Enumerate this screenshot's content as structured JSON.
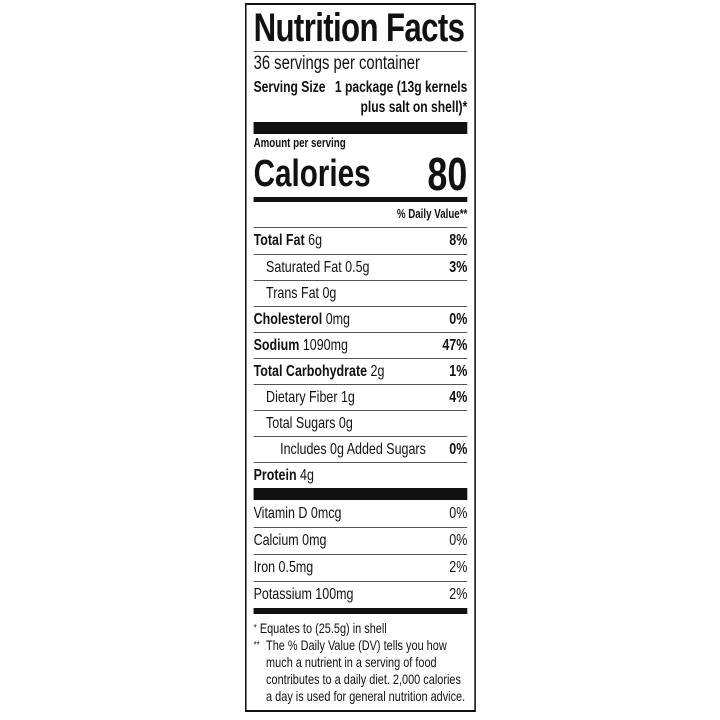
{
  "title": "Nutrition Facts",
  "servings_per_container": "36 servings per container",
  "serving_size": {
    "label": "Serving Size",
    "value_line1": "1 package (13g kernels",
    "value_line2": "plus salt on shell)*"
  },
  "amount_per_serving": "Amount per serving",
  "calories": {
    "label": "Calories",
    "value": "80"
  },
  "daily_value_header": "% Daily Value**",
  "nutrients": [
    {
      "name": "Total Fat",
      "amount": "6g",
      "dv": "8%",
      "bold": true,
      "indent": 0
    },
    {
      "name": "Saturated Fat",
      "amount": "0.5g",
      "dv": "3%",
      "bold": false,
      "indent": 1
    },
    {
      "name": "Trans Fat",
      "amount": "0g",
      "dv": "",
      "bold": false,
      "indent": 1
    },
    {
      "name": "Cholesterol",
      "amount": "0mg",
      "dv": "0%",
      "bold": true,
      "indent": 0
    },
    {
      "name": "Sodium",
      "amount": "1090mg",
      "dv": "47%",
      "bold": true,
      "indent": 0
    },
    {
      "name": "Total Carbohydrate",
      "amount": "2g",
      "dv": "1%",
      "bold": true,
      "indent": 0
    },
    {
      "name": "Dietary Fiber",
      "amount": "1g",
      "dv": "4%",
      "bold": false,
      "indent": 1
    },
    {
      "name": "Total Sugars",
      "amount": "0g",
      "dv": "",
      "bold": false,
      "indent": 1
    },
    {
      "name": "Includes 0g Added Sugars",
      "amount": "",
      "dv": "0%",
      "bold": false,
      "indent": 2
    },
    {
      "name": "Protein",
      "amount": "4g",
      "dv": "",
      "bold": true,
      "indent": 0
    }
  ],
  "vitamins": [
    {
      "name": "Vitamin D 0mcg",
      "dv": "0%"
    },
    {
      "name": "Calcium 0mg",
      "dv": "0%"
    },
    {
      "name": "Iron 0.5mg",
      "dv": "2%"
    },
    {
      "name": "Potassium 100mg",
      "dv": "2%"
    }
  ],
  "footnotes": [
    {
      "marker": "*",
      "text": "Equates to (25.5g) in shell"
    },
    {
      "marker": "**",
      "text": "The % Daily Value (DV) tells you how much a nutrient in a serving of food contributes to a daily diet. 2,000 calories a day is used for general nutrition advice."
    }
  ]
}
